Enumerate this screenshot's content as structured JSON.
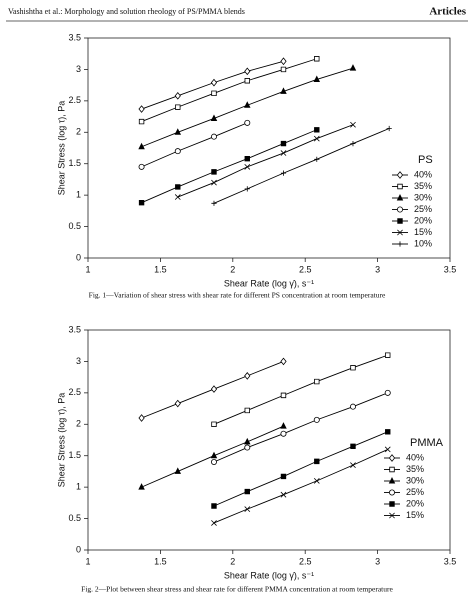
{
  "header": {
    "left": "Vashishtha et al.: Morphology and solution rheology of PS/PMMA blends",
    "right": "Articles"
  },
  "chart_data": [
    {
      "type": "line",
      "caption": "Fig. 1—Variation of shear stress with shear rate for different PS concentration at room temperature",
      "x_label": "Shear Rate (log γ̇), s⁻¹",
      "y_label": "Shear Stress (log τ), Pa",
      "xlim": [
        1,
        3.5
      ],
      "xticks": [
        1,
        1.5,
        2,
        2.5,
        3,
        3.5
      ],
      "ylim": [
        0,
        3.5
      ],
      "yticks": [
        0,
        0.5,
        1,
        1.5,
        2,
        2.5,
        3,
        3.5
      ],
      "grid": false,
      "legend": "right",
      "legend_title": "PS",
      "series": [
        {
          "name": "40%",
          "color": "#000000",
          "marker": "diamond",
          "x": [
            1.37,
            1.62,
            1.87,
            2.1,
            2.35
          ],
          "values": [
            2.37,
            2.58,
            2.79,
            2.97,
            3.13
          ]
        },
        {
          "name": "35%",
          "color": "#000000",
          "marker": "square",
          "x": [
            1.37,
            1.62,
            1.87,
            2.1,
            2.35,
            2.58
          ],
          "values": [
            2.17,
            2.4,
            2.62,
            2.82,
            3.0,
            3.17
          ]
        },
        {
          "name": "30%",
          "color": "#000000",
          "marker": "triangle",
          "x": [
            1.37,
            1.62,
            1.87,
            2.1,
            2.35,
            2.58,
            2.83
          ],
          "values": [
            1.77,
            2.0,
            2.22,
            2.43,
            2.65,
            2.84,
            3.02
          ]
        },
        {
          "name": "25%",
          "color": "#000000",
          "marker": "circle",
          "x": [
            1.37,
            1.62,
            1.87,
            2.1
          ],
          "values": [
            1.45,
            1.7,
            1.93,
            2.15
          ]
        },
        {
          "name": "20%",
          "color": "#000000",
          "marker": "filled-square",
          "x": [
            1.37,
            1.62,
            1.87,
            2.1,
            2.35,
            2.58
          ],
          "values": [
            0.88,
            1.13,
            1.37,
            1.58,
            1.82,
            2.04
          ]
        },
        {
          "name": "15%",
          "color": "#000000",
          "marker": "cross",
          "x": [
            1.62,
            1.87,
            2.1,
            2.35,
            2.58,
            2.83
          ],
          "values": [
            0.97,
            1.2,
            1.45,
            1.67,
            1.9,
            2.12
          ]
        },
        {
          "name": "10%",
          "color": "#000000",
          "marker": "plus",
          "x": [
            1.87,
            2.1,
            2.35,
            2.58,
            2.83,
            3.08
          ],
          "values": [
            0.87,
            1.1,
            1.35,
            1.57,
            1.82,
            2.06
          ]
        }
      ]
    },
    {
      "type": "line",
      "caption": "Fig. 2—Plot between shear stress and shear rate for different PMMA concentration at room temperature",
      "x_label": "Shear Rate (log γ̇), s⁻¹",
      "y_label": "Shear Stress (log τ), Pa",
      "xlim": [
        1,
        3.5
      ],
      "xticks": [
        1,
        1.5,
        2,
        2.5,
        3,
        3.5
      ],
      "ylim": [
        0,
        3.5
      ],
      "yticks": [
        0,
        0.5,
        1,
        1.5,
        2,
        2.5,
        3,
        3.5
      ],
      "grid": false,
      "legend": "right",
      "legend_title": "PMMA",
      "series": [
        {
          "name": "40%",
          "color": "#000000",
          "marker": "diamond",
          "x": [
            1.37,
            1.62,
            1.87,
            2.1,
            2.35
          ],
          "values": [
            2.1,
            2.33,
            2.56,
            2.77,
            3.0
          ]
        },
        {
          "name": "35%",
          "color": "#000000",
          "marker": "square",
          "x": [
            1.87,
            2.1,
            2.35,
            2.58,
            2.83,
            3.07
          ],
          "values": [
            2.0,
            2.22,
            2.46,
            2.68,
            2.9,
            3.1
          ]
        },
        {
          "name": "30%",
          "color": "#000000",
          "marker": "triangle",
          "x": [
            1.37,
            1.62,
            1.87,
            2.1,
            2.35
          ],
          "values": [
            1.0,
            1.25,
            1.5,
            1.72,
            1.97
          ]
        },
        {
          "name": "25%",
          "color": "#000000",
          "marker": "circle",
          "x": [
            1.87,
            2.1,
            2.35,
            2.58,
            2.83,
            3.07
          ],
          "values": [
            1.4,
            1.63,
            1.85,
            2.07,
            2.28,
            2.5
          ]
        },
        {
          "name": "20%",
          "color": "#000000",
          "marker": "filled-square",
          "x": [
            1.87,
            2.1,
            2.35,
            2.58,
            2.83,
            3.07
          ],
          "values": [
            0.7,
            0.93,
            1.17,
            1.41,
            1.65,
            1.88
          ]
        },
        {
          "name": "15%",
          "color": "#000000",
          "marker": "cross",
          "x": [
            1.87,
            2.1,
            2.35,
            2.58,
            2.83,
            3.07
          ],
          "values": [
            0.43,
            0.65,
            0.88,
            1.1,
            1.35,
            1.6
          ]
        }
      ]
    }
  ]
}
